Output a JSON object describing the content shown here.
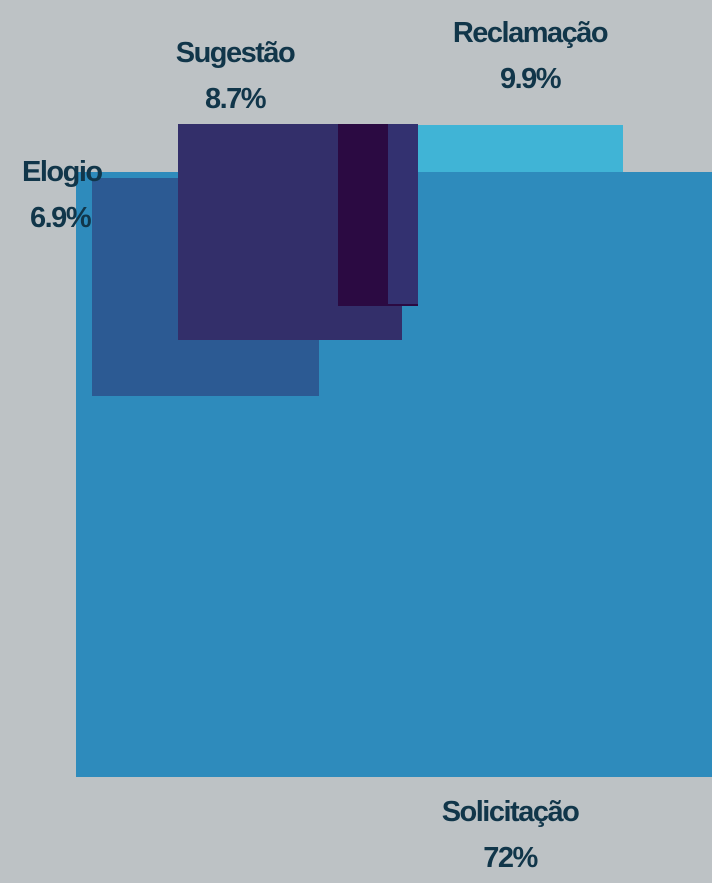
{
  "chart_data": {
    "type": "area",
    "categories": [
      "Solicitação",
      "Reclamação",
      "Sugestão",
      "Elogio"
    ],
    "series": [
      {
        "name": "Solicitação",
        "value": 72,
        "value_label": "72%",
        "color": "#2e8bbc"
      },
      {
        "name": "Reclamação",
        "value": 9.9,
        "value_label": "9.9%",
        "color": "#40b4d6"
      },
      {
        "name": "Sugestão",
        "value": 8.7,
        "value_label": "8.7%",
        "color": "#332f6a"
      },
      {
        "name": "Elogio",
        "value": 6.9,
        "value_label": "6.9%",
        "color": "#2c5a93"
      }
    ],
    "other_colors": {
      "small_dark_block": "#2b0a42",
      "small_mid_block": "#333170"
    },
    "grid": false,
    "legend": "none"
  }
}
